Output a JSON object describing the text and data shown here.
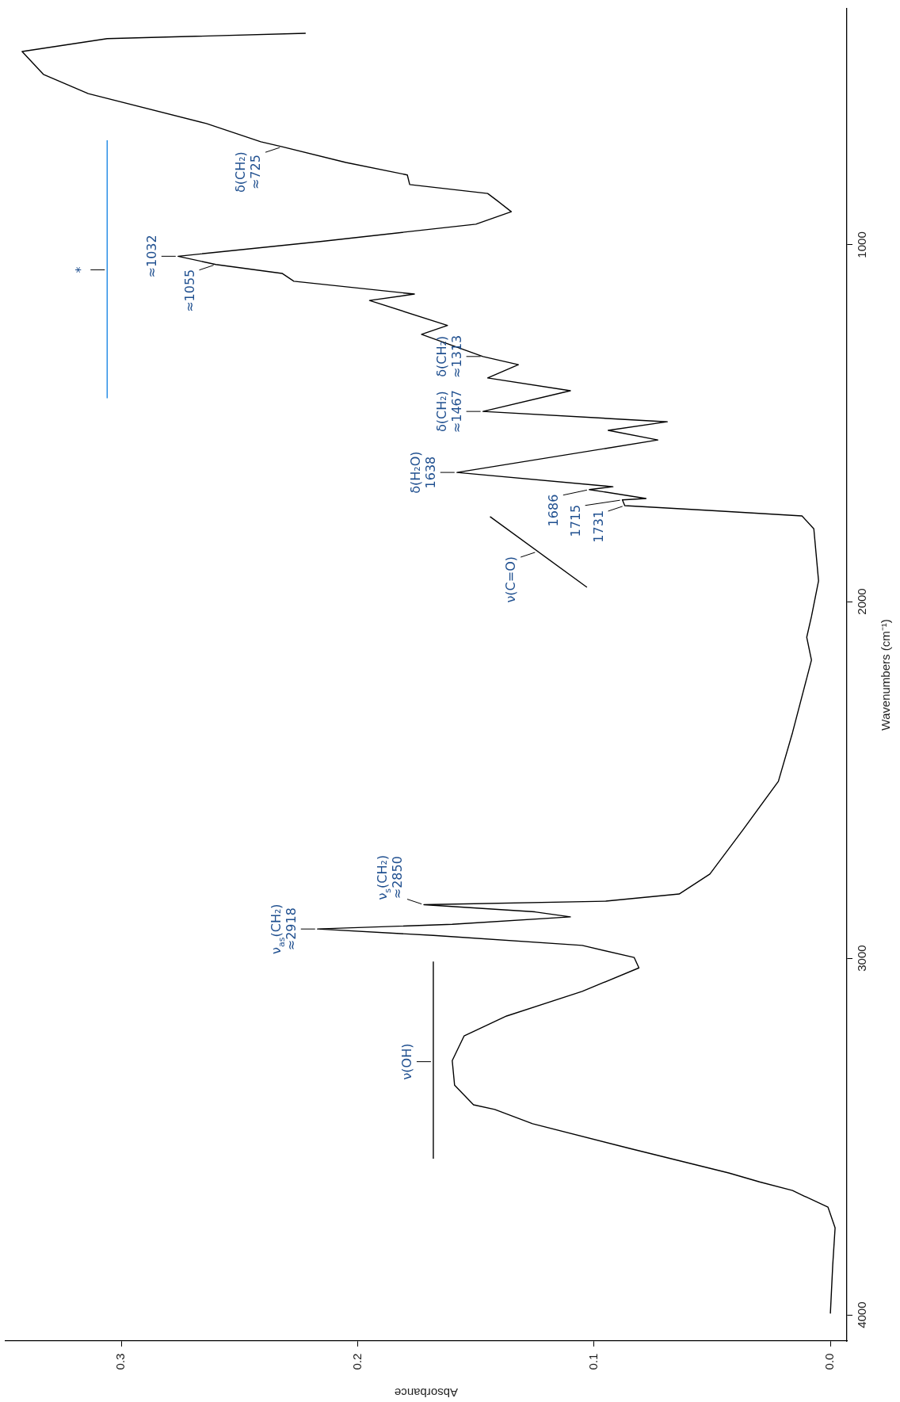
{
  "chart_data": {
    "type": "line",
    "xlabel": "Absorbance",
    "ylabel": "Wavenumbers (cm⁻¹)",
    "xlim": [
      0.349,
      -0.007
    ],
    "xticks": [
      {
        "value": 0,
        "label": "0.0"
      },
      0.1,
      0.2,
      0.3
    ],
    "ylim": [
      4073,
      338
    ],
    "yticks": [
      4000,
      3000,
      2000,
      1000
    ],
    "series": [
      {
        "type": "line",
        "color": "#000000",
        "x": [
          0.0,
          -0.001,
          -0.002,
          0.001,
          0.011,
          0.016,
          0.03,
          0.043,
          0.085,
          0.126,
          0.142,
          0.151,
          0.159,
          0.16,
          0.155,
          0.137,
          0.105,
          0.081,
          0.083,
          0.105,
          0.168,
          0.217,
          0.16,
          0.11,
          0.125,
          0.172,
          0.095,
          0.064,
          0.051,
          0.037,
          0.022,
          0.016,
          0.008,
          0.01,
          0.008,
          0.005,
          0.007,
          0.012,
          0.05,
          0.087,
          0.088,
          0.078,
          0.102,
          0.092,
          0.158,
          0.073,
          0.094,
          0.069,
          0.147,
          0.11,
          0.145,
          0.132,
          0.147,
          0.173,
          0.162,
          0.195,
          0.176,
          0.227,
          0.232,
          0.26,
          0.276,
          0.215,
          0.15,
          0.135,
          0.141,
          0.145,
          0.178,
          0.179,
          0.205,
          0.232,
          0.241,
          0.264,
          0.314,
          0.333,
          0.342,
          0.306,
          0.222
        ],
        "values": [
          3996,
          3860,
          3756,
          3698,
          3667,
          3651,
          3627,
          3602,
          3533,
          3464,
          3424,
          3411,
          3356,
          3287,
          3218,
          3162,
          3093,
          3027,
          2998,
          2964,
          2936,
          2918,
          2905,
          2884,
          2870,
          2850,
          2840,
          2820,
          2764,
          2640,
          2504,
          2367,
          2164,
          2100,
          2042,
          1942,
          1796,
          1760,
          1745,
          1731,
          1715,
          1711,
          1686,
          1678,
          1638,
          1547,
          1520,
          1496,
          1467,
          1409,
          1373,
          1336,
          1313,
          1251,
          1226,
          1156,
          1138,
          1102,
          1080,
          1055,
          1032,
          990,
          942,
          907,
          876,
          856,
          831,
          804,
          769,
          725,
          711,
          660,
          576,
          522,
          458,
          422,
          407
        ]
      },
      {
        "type": "line",
        "color": "#000000",
        "x": [
          0.168,
          0.168
        ],
        "values": [
          3562,
          3009
        ]
      },
      {
        "type": "line",
        "color": "#000000",
        "x": [
          0.103,
          0.144
        ],
        "values": [
          1960,
          1762
        ]
      },
      {
        "type": "line",
        "color": "#1e88e5",
        "x": [
          0.306,
          0.306
        ],
        "values": [
          1430,
          707
        ]
      }
    ],
    "annotations": [
      {
        "text": "ν(OH)",
        "x": 0.168,
        "y": 3290
      },
      {
        "text": "ν$_{as}$(CH₂)\n≈2918",
        "x": 0.217,
        "y": 2918
      },
      {
        "text": "ν$_{s}$(CH₂)\n≈2850",
        "x": 0.172,
        "y": 2850
      },
      {
        "text": "ν(C=O)",
        "x": 0.124,
        "y": 1860
      },
      {
        "text": "1731",
        "x": 0.087,
        "y": 1731
      },
      {
        "text": "1715",
        "x": 0.088,
        "y": 1715
      },
      {
        "text": "1686",
        "x": 0.102,
        "y": 1686
      },
      {
        "text": "δ(H₂O)\n1638",
        "x": 0.158,
        "y": 1638
      },
      {
        "text": "δ(CH₂)\n≈1467",
        "x": 0.147,
        "y": 1467
      },
      {
        "text": "δ(CH₂)\n≈1313",
        "x": 0.147,
        "y": 1313
      },
      {
        "text": "≈1055",
        "x": 0.26,
        "y": 1055
      },
      {
        "text": "≈1032",
        "x": 0.276,
        "y": 1032
      },
      {
        "text": "*",
        "x": 0.306,
        "y": 1070
      },
      {
        "text": "δ(CH₂)\n≈725",
        "x": 0.232,
        "y": 725
      }
    ]
  }
}
